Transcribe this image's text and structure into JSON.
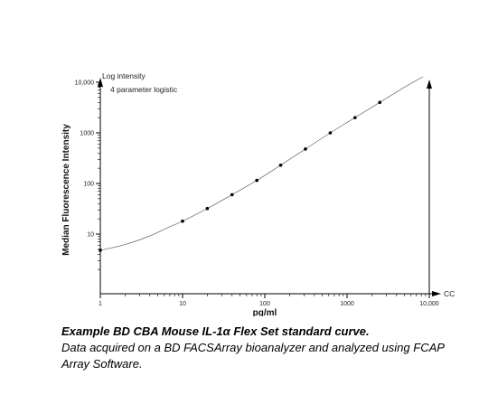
{
  "chart_data": {
    "type": "scatter",
    "xlabel": "pg/ml",
    "ylabel": "Median Fluorescence Intensity",
    "x_scale": "log",
    "y_scale": "log",
    "xlim": [
      1,
      10000
    ],
    "ylim": [
      1,
      10000
    ],
    "x_ticks": [
      "1",
      "10",
      "100",
      "1000",
      "10,000"
    ],
    "y_ticks": [
      "10",
      "100",
      "1000",
      "10,000"
    ],
    "x_axis_end_label": "CC",
    "y_axis_end_label": "Log intensity",
    "fit_label": "4 parameter logistic",
    "grid": false,
    "series": [
      {
        "x": [
          1,
          10,
          20,
          40,
          80,
          156,
          312,
          625,
          1250,
          2500
        ],
        "y": [
          4.8,
          18,
          32,
          60,
          115,
          230,
          480,
          1000,
          2000,
          4000
        ]
      }
    ],
    "curve": {
      "x": [
        1,
        2,
        4,
        7,
        10,
        20,
        40,
        80,
        156,
        312,
        625,
        1250,
        2500,
        5000,
        10000
      ],
      "y": [
        4.8,
        6.2,
        9.2,
        14,
        18,
        32,
        60,
        115,
        230,
        480,
        1000,
        2000,
        4000,
        8000,
        15000
      ]
    }
  },
  "caption": {
    "title": "Example BD CBA Mouse IL-1α Flex Set standard curve.",
    "body": "Data acquired on a BD FACSArray bioanalyzer and analyzed using FCAP Array Software."
  }
}
